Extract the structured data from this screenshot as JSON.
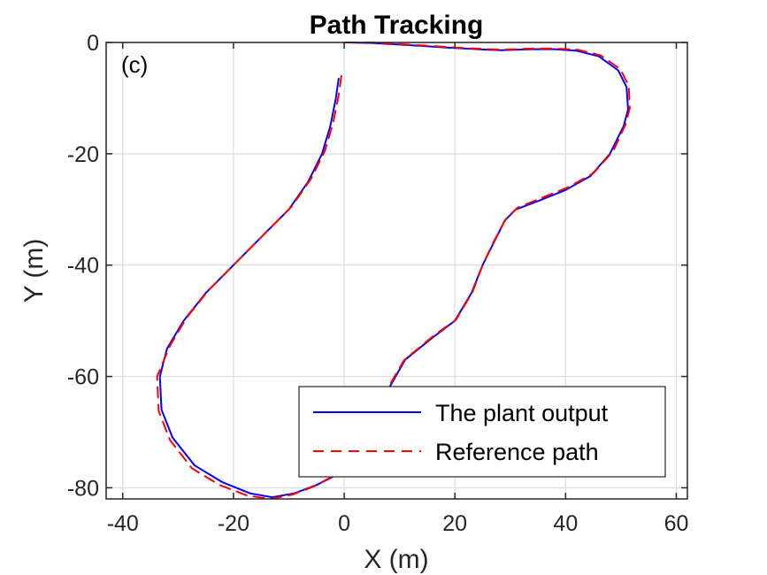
{
  "chart_data": {
    "type": "line",
    "title": "Path Tracking",
    "xlabel": "X (m)",
    "ylabel": "Y (m)",
    "annotation": "(c)",
    "xlim": [
      -43,
      62
    ],
    "ylim": [
      -82,
      0
    ],
    "xticks": [
      -40,
      -20,
      0,
      20,
      40,
      60
    ],
    "yticks": [
      0,
      -20,
      -40,
      -60,
      -80
    ],
    "grid": true,
    "legend_position": "bottom-right",
    "series": [
      {
        "name": "The plant output",
        "color": "#0000ff",
        "style": "solid",
        "x": [
          -1,
          -1.5,
          -2.5,
          -4,
          -6.5,
          -10,
          -15,
          -20,
          -25,
          -29,
          -32,
          -33.3,
          -33,
          -31,
          -27,
          -22,
          -17,
          -13,
          -9,
          -5,
          -2,
          1,
          3,
          4.5,
          7,
          11,
          16,
          20,
          23,
          25,
          27,
          29,
          31,
          35,
          40,
          44.5,
          48,
          50.5,
          51.3,
          51,
          49.5,
          46,
          42,
          38,
          34,
          31,
          28.5,
          26,
          20,
          12,
          5,
          0
        ],
        "y": [
          -6.5,
          -10,
          -15,
          -20,
          -25,
          -30,
          -35,
          -40,
          -45,
          -50,
          -55,
          -60,
          -66,
          -71,
          -76,
          -79,
          -81,
          -81.7,
          -81,
          -79.5,
          -78,
          -75,
          -72,
          -69,
          -64,
          -57,
          -53,
          -50,
          -45,
          -40,
          -36,
          -32,
          -30,
          -28.5,
          -26.5,
          -24,
          -20,
          -15,
          -12,
          -8,
          -5,
          -2.5,
          -1.5,
          -1.2,
          -1.2,
          -1.3,
          -1.4,
          -1.3,
          -1,
          -0.5,
          -0.1,
          0
        ]
      },
      {
        "name": "Reference path",
        "color": "#ff0000",
        "style": "dashed",
        "x": [
          -0.5,
          -1,
          -2,
          -3.5,
          -6,
          -9.5,
          -14.5,
          -19.5,
          -24.5,
          -28.5,
          -31.5,
          -33.8,
          -33.5,
          -31.5,
          -27.5,
          -22.5,
          -17.5,
          -13.3,
          -9.3,
          -5.3,
          -2.2,
          0.8,
          2.8,
          4.3,
          6.8,
          10.8,
          16,
          20.2,
          23.2,
          25.1,
          27,
          29.2,
          31.3,
          35.5,
          40.5,
          45,
          48.6,
          50.8,
          51.6,
          51.4,
          49.9,
          46.3,
          42.2,
          38.1,
          34.1,
          31,
          28.5,
          26,
          20,
          12,
          5,
          0
        ],
        "y": [
          -6,
          -9.5,
          -14.5,
          -19.5,
          -24.5,
          -29.5,
          -34.5,
          -39.5,
          -44.5,
          -49.5,
          -54.5,
          -60,
          -66.2,
          -71.4,
          -76.5,
          -79.5,
          -81.4,
          -82,
          -81.2,
          -79.7,
          -78,
          -75,
          -72,
          -69,
          -64,
          -57.1,
          -52.8,
          -49.8,
          -44.8,
          -39.8,
          -35.8,
          -31.7,
          -29.7,
          -28,
          -26,
          -23.5,
          -19.5,
          -14.8,
          -11.8,
          -7.8,
          -4.8,
          -2.3,
          -1.3,
          -1.1,
          -1.1,
          -1.2,
          -1.3,
          -1.2,
          -0.9,
          -0.4,
          0,
          0
        ]
      }
    ]
  }
}
